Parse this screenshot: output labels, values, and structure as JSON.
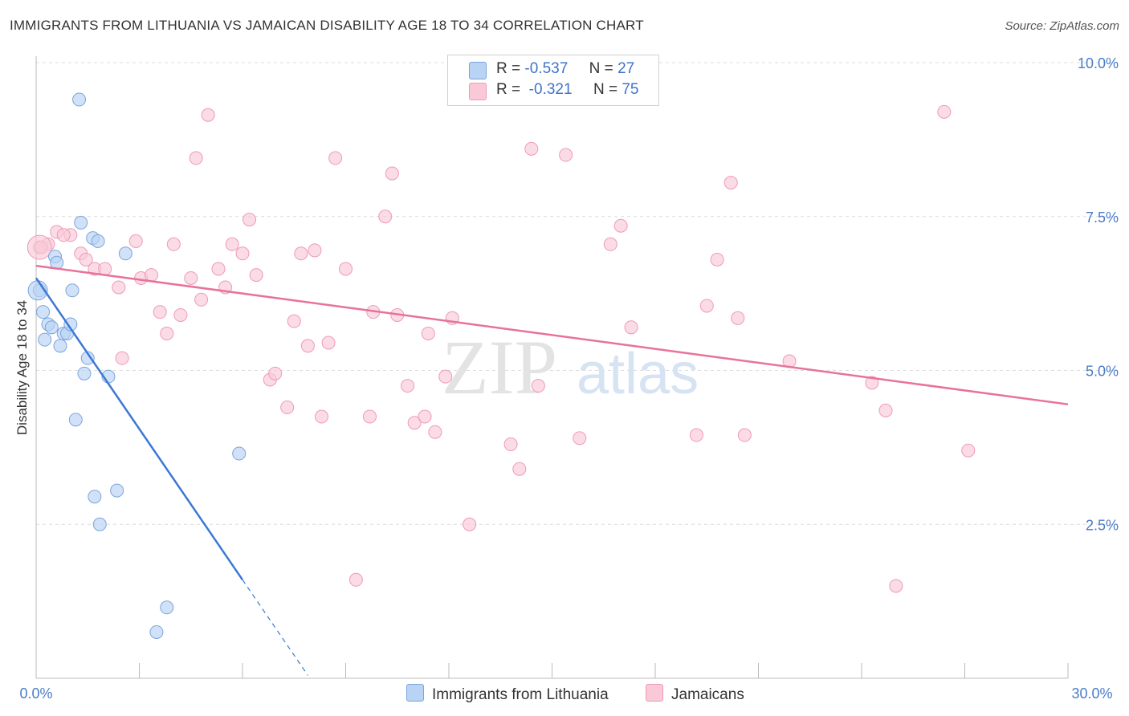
{
  "header": {
    "title": "IMMIGRANTS FROM LITHUANIA VS JAMAICAN DISABILITY AGE 18 TO 34 CORRELATION CHART",
    "source": "Source: ZipAtlas.com"
  },
  "legend": {
    "series1": {
      "r_label": "R =",
      "r_value": "-0.537",
      "n_label": "N =",
      "n_value": "27"
    },
    "series2": {
      "r_label": "R =",
      "r_value": "-0.321",
      "n_label": "N =",
      "n_value": "75"
    }
  },
  "watermark": {
    "zip": "ZIP",
    "atlas": "atlas"
  },
  "colors": {
    "blue_fill": "#b8d3f4",
    "blue_stroke": "#7aa5dd",
    "blue_line": "#3b78d4",
    "pink_fill": "#f9c9d8",
    "pink_stroke": "#ee9ab6",
    "pink_line": "#e8729a"
  },
  "chart_data": {
    "type": "scatter",
    "title": "IMMIGRANTS FROM LITHUANIA VS JAMAICAN DISABILITY AGE 18 TO 34 CORRELATION CHART",
    "xlabel": "",
    "ylabel": "Disability Age 18 to 34",
    "xlim": [
      0,
      30
    ],
    "ylim": [
      0,
      10
    ],
    "x_tick_labels": [
      "0.0%",
      "30.0%"
    ],
    "y_ticks": [
      2.5,
      5.0,
      7.5,
      10.0
    ],
    "y_tick_labels": [
      "2.5%",
      "5.0%",
      "7.5%",
      "10.0%"
    ],
    "series": [
      {
        "name": "Immigrants from Lithuania",
        "color": "#b8d3f4",
        "R": -0.537,
        "N": 27,
        "trend": {
          "x0": 0.0,
          "y0": 6.5,
          "x1": 6.0,
          "y1": 1.6,
          "dashed_to_x": 7.9
        },
        "points": [
          [
            0.1,
            6.3
          ],
          [
            0.2,
            5.95
          ],
          [
            0.25,
            5.5
          ],
          [
            0.35,
            5.75
          ],
          [
            0.45,
            5.7
          ],
          [
            0.55,
            6.85
          ],
          [
            0.6,
            6.75
          ],
          [
            0.7,
            5.4
          ],
          [
            0.8,
            5.6
          ],
          [
            0.9,
            5.6
          ],
          [
            1.0,
            5.75
          ],
          [
            1.05,
            6.3
          ],
          [
            1.3,
            7.4
          ],
          [
            1.4,
            4.95
          ],
          [
            1.5,
            5.2
          ],
          [
            1.65,
            7.15
          ],
          [
            1.8,
            7.1
          ],
          [
            2.1,
            4.9
          ],
          [
            2.6,
            6.9
          ],
          [
            1.15,
            4.2
          ],
          [
            1.7,
            2.95
          ],
          [
            2.35,
            3.05
          ],
          [
            1.85,
            2.5
          ],
          [
            5.9,
            3.65
          ],
          [
            3.8,
            1.15
          ],
          [
            3.5,
            0.75
          ],
          [
            1.25,
            9.4
          ]
        ]
      },
      {
        "name": "Jamaicans",
        "color": "#f9c9d8",
        "R": -0.321,
        "N": 75,
        "trend": {
          "x0": 0.0,
          "y0": 6.7,
          "x1": 30.0,
          "y1": 4.45
        },
        "points": [
          [
            0.1,
            7.0
          ],
          [
            0.35,
            7.05
          ],
          [
            0.6,
            7.25
          ],
          [
            1.0,
            7.2
          ],
          [
            0.8,
            7.2
          ],
          [
            1.3,
            6.9
          ],
          [
            1.45,
            6.8
          ],
          [
            1.7,
            6.65
          ],
          [
            2.0,
            6.65
          ],
          [
            2.4,
            6.35
          ],
          [
            2.5,
            5.2
          ],
          [
            2.9,
            7.1
          ],
          [
            3.05,
            6.5
          ],
          [
            3.35,
            6.55
          ],
          [
            3.6,
            5.95
          ],
          [
            3.8,
            5.6
          ],
          [
            4.0,
            7.05
          ],
          [
            4.2,
            5.9
          ],
          [
            4.5,
            6.5
          ],
          [
            4.8,
            6.15
          ],
          [
            5.0,
            9.15
          ],
          [
            4.65,
            8.45
          ],
          [
            5.3,
            6.65
          ],
          [
            5.5,
            6.35
          ],
          [
            5.7,
            7.05
          ],
          [
            6.0,
            6.9
          ],
          [
            6.2,
            7.45
          ],
          [
            6.4,
            6.55
          ],
          [
            6.8,
            4.85
          ],
          [
            6.95,
            4.95
          ],
          [
            7.3,
            4.4
          ],
          [
            7.5,
            5.8
          ],
          [
            7.7,
            6.9
          ],
          [
            7.9,
            5.4
          ],
          [
            8.1,
            6.95
          ],
          [
            8.3,
            4.25
          ],
          [
            8.5,
            5.45
          ],
          [
            8.7,
            8.45
          ],
          [
            9.0,
            6.65
          ],
          [
            9.3,
            1.6
          ],
          [
            9.7,
            4.25
          ],
          [
            9.8,
            5.95
          ],
          [
            10.15,
            7.5
          ],
          [
            10.35,
            8.2
          ],
          [
            10.5,
            5.9
          ],
          [
            10.8,
            4.75
          ],
          [
            11.0,
            4.15
          ],
          [
            11.3,
            4.25
          ],
          [
            11.4,
            5.6
          ],
          [
            11.6,
            4.0
          ],
          [
            11.9,
            4.9
          ],
          [
            12.1,
            5.85
          ],
          [
            12.6,
            2.5
          ],
          [
            13.8,
            3.8
          ],
          [
            14.05,
            3.4
          ],
          [
            14.4,
            8.6
          ],
          [
            14.6,
            4.75
          ],
          [
            15.4,
            8.5
          ],
          [
            15.8,
            3.9
          ],
          [
            16.7,
            7.05
          ],
          [
            17.0,
            7.35
          ],
          [
            17.3,
            5.7
          ],
          [
            19.2,
            3.95
          ],
          [
            19.5,
            6.05
          ],
          [
            19.8,
            6.8
          ],
          [
            20.2,
            8.05
          ],
          [
            20.4,
            5.85
          ],
          [
            20.6,
            3.95
          ],
          [
            21.9,
            5.15
          ],
          [
            24.3,
            4.8
          ],
          [
            24.7,
            4.35
          ],
          [
            25.0,
            1.5
          ],
          [
            26.4,
            9.2
          ],
          [
            27.1,
            3.7
          ],
          [
            0.15,
            7.0
          ]
        ]
      }
    ]
  }
}
